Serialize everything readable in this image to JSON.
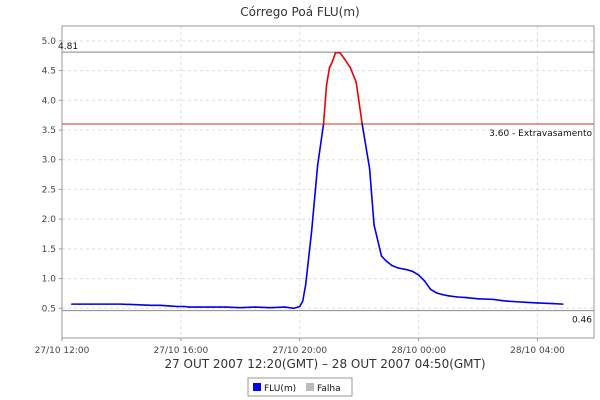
{
  "chart_data": {
    "type": "line",
    "title": "Córrego Poá FLU(m)",
    "subtitle": "27 OUT 2007 12:20(GMT) – 28 OUT 2007 04:50(GMT)",
    "x_unit": "hours since 27/10 12:00",
    "xlim": [
      0,
      17.9
    ],
    "ylim": [
      0.0,
      5.25
    ],
    "y_ticks": [
      "0.5",
      "1.0",
      "1.5",
      "2.0",
      "2.5",
      "3.0",
      "3.5",
      "4.0",
      "4.5",
      "5.0"
    ],
    "x_ticks": [
      {
        "x": 0,
        "label": "27/10 12:00"
      },
      {
        "x": 4,
        "label": "27/10 16:00"
      },
      {
        "x": 8,
        "label": "27/10 20:00"
      },
      {
        "x": 12,
        "label": "28/10 00:00"
      },
      {
        "x": 16,
        "label": "28/10 04:00"
      }
    ],
    "reference_lines": [
      {
        "y": 4.81,
        "label": "4.81",
        "color": "#888888",
        "label_side": "left"
      },
      {
        "y": 3.6,
        "label": "3.60 - Extravasamento",
        "color": "#d03020",
        "label_side": "right"
      },
      {
        "y": 0.46,
        "label": "0.46",
        "color": "#888888",
        "label_side": "right"
      }
    ],
    "threshold": 3.6,
    "colors": {
      "normal": "#0000ee",
      "above_threshold": "#ee0000",
      "grid": "#dddddd",
      "falha": "#bbbbbb"
    },
    "grid": true,
    "legend_position": "bottom-center",
    "series": [
      {
        "name": "FLU(m)",
        "x": [
          0.33,
          0.6,
          1.0,
          1.5,
          2.0,
          2.5,
          3.0,
          3.3,
          3.6,
          3.9,
          4.1,
          4.3,
          4.6,
          5.0,
          5.5,
          6.0,
          6.5,
          7.0,
          7.5,
          7.8,
          8.0,
          8.1,
          8.2,
          8.4,
          8.6,
          8.8,
          8.9,
          9.0,
          9.1,
          9.2,
          9.35,
          9.5,
          9.7,
          9.9,
          10.1,
          10.35,
          10.5,
          10.75,
          10.9,
          11.1,
          11.3,
          11.6,
          11.8,
          12.0,
          12.2,
          12.4,
          12.6,
          12.8,
          13.0,
          13.3,
          13.6,
          14.0,
          14.5,
          14.8,
          15.0,
          15.3,
          15.6,
          16.0,
          16.5,
          16.85
        ],
        "y": [
          0.57,
          0.57,
          0.57,
          0.57,
          0.57,
          0.56,
          0.55,
          0.55,
          0.54,
          0.53,
          0.53,
          0.52,
          0.52,
          0.52,
          0.52,
          0.51,
          0.52,
          0.51,
          0.52,
          0.5,
          0.53,
          0.62,
          0.9,
          1.8,
          2.9,
          3.6,
          4.25,
          4.55,
          4.65,
          4.8,
          4.8,
          4.7,
          4.55,
          4.3,
          3.6,
          2.85,
          1.9,
          1.38,
          1.3,
          1.22,
          1.18,
          1.15,
          1.12,
          1.06,
          0.96,
          0.82,
          0.76,
          0.73,
          0.71,
          0.69,
          0.68,
          0.66,
          0.65,
          0.63,
          0.62,
          0.61,
          0.6,
          0.59,
          0.58,
          0.57
        ]
      }
    ]
  },
  "legend": [
    {
      "label": "FLU(m)",
      "color": "#0000ee"
    },
    {
      "label": "Falha",
      "color": "#bbbbbb"
    }
  ]
}
